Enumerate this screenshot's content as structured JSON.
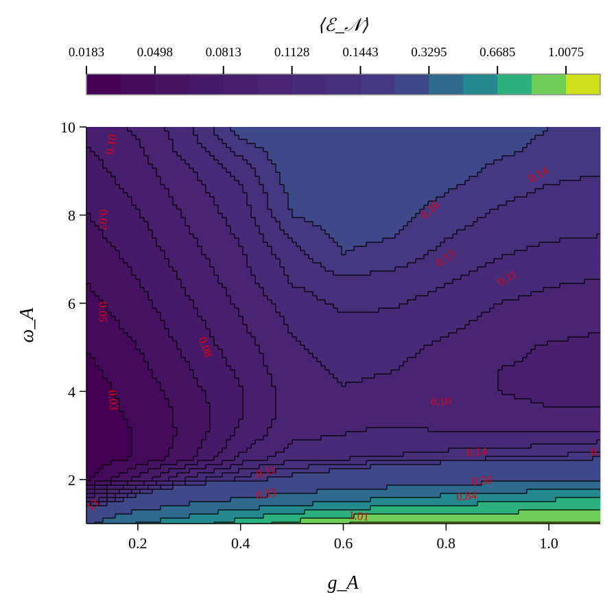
{
  "chart_data": {
    "type": "contourf",
    "xlabel": "g_A",
    "ylabel": "ω_A",
    "xlim": [
      0.1,
      1.1
    ],
    "ylim": [
      1,
      10
    ],
    "xticks": [
      0.2,
      0.4,
      0.6,
      0.8,
      1.0
    ],
    "xtick_labels": [
      "0.2",
      "0.4",
      "0.6",
      "0.8",
      "1.0"
    ],
    "yticks": [
      2,
      4,
      6,
      8,
      10
    ],
    "ytick_labels": [
      "2",
      "4",
      "6",
      "8",
      "10"
    ],
    "colorbar": {
      "label": "⟨ℰ_𝒩⟩",
      "position": "top",
      "levels": [
        0.0183,
        0.0341,
        0.0498,
        0.0656,
        0.0813,
        0.097,
        0.1128,
        0.1285,
        0.1443,
        0.16,
        0.3295,
        0.499,
        0.6685,
        0.838,
        1.0075,
        1.177
      ],
      "tick_labels": [
        "0.0183",
        "0.0498",
        "0.0813",
        "0.1128",
        "0.1443",
        "0.3295",
        "0.6685",
        "1.0075"
      ],
      "band_colors": [
        "#440154",
        "#450a5c",
        "#461363",
        "#471a69",
        "#471f6e",
        "#482473",
        "#472a78",
        "#46307c",
        "#453781",
        "#3f4889",
        "#30698e",
        "#23898e",
        "#2cb17e",
        "#6ece58",
        "#d0e11c"
      ]
    },
    "x": [
      0.1,
      0.2,
      0.3,
      0.4,
      0.5,
      0.6,
      0.7,
      0.8,
      0.9,
      1.0,
      1.1
    ],
    "y": [
      10,
      9.5,
      9,
      8.5,
      8,
      7.5,
      7,
      6.5,
      6,
      5.5,
      5,
      4.5,
      4,
      3.5,
      3,
      2.5,
      2,
      1.5,
      1
    ],
    "z": [
      [
        0.085,
        0.1,
        0.125,
        0.17,
        0.18,
        0.18,
        0.18,
        0.175,
        0.17,
        0.16,
        0.155
      ],
      [
        0.08,
        0.095,
        0.12,
        0.15,
        0.175,
        0.18,
        0.18,
        0.175,
        0.165,
        0.155,
        0.15
      ],
      [
        0.075,
        0.09,
        0.11,
        0.135,
        0.17,
        0.18,
        0.18,
        0.17,
        0.155,
        0.148,
        0.145
      ],
      [
        0.07,
        0.085,
        0.105,
        0.125,
        0.165,
        0.175,
        0.17,
        0.16,
        0.148,
        0.142,
        0.14
      ],
      [
        0.065,
        0.08,
        0.1,
        0.12,
        0.16,
        0.17,
        0.165,
        0.152,
        0.142,
        0.137,
        0.135
      ],
      [
        0.06,
        0.075,
        0.095,
        0.115,
        0.145,
        0.165,
        0.16,
        0.145,
        0.135,
        0.13,
        0.128
      ],
      [
        0.055,
        0.07,
        0.09,
        0.11,
        0.135,
        0.158,
        0.15,
        0.138,
        0.128,
        0.123,
        0.12
      ],
      [
        0.05,
        0.065,
        0.085,
        0.105,
        0.13,
        0.14,
        0.138,
        0.13,
        0.12,
        0.115,
        0.112
      ],
      [
        0.045,
        0.06,
        0.08,
        0.1,
        0.12,
        0.132,
        0.13,
        0.122,
        0.113,
        0.108,
        0.103
      ],
      [
        0.04,
        0.055,
        0.075,
        0.095,
        0.115,
        0.125,
        0.123,
        0.116,
        0.108,
        0.1,
        0.098
      ],
      [
        0.035,
        0.05,
        0.07,
        0.09,
        0.11,
        0.12,
        0.117,
        0.11,
        0.1,
        0.096,
        0.095
      ],
      [
        0.03,
        0.045,
        0.065,
        0.085,
        0.108,
        0.115,
        0.113,
        0.105,
        0.097,
        0.095,
        0.094
      ],
      [
        0.027,
        0.04,
        0.06,
        0.08,
        0.105,
        0.112,
        0.11,
        0.103,
        0.097,
        0.095,
        0.095
      ],
      [
        0.025,
        0.038,
        0.055,
        0.08,
        0.105,
        0.11,
        0.11,
        0.105,
        0.1,
        0.098,
        0.098
      ],
      [
        0.023,
        0.035,
        0.055,
        0.085,
        0.11,
        0.113,
        0.115,
        0.115,
        0.115,
        0.115,
        0.118
      ],
      [
        0.022,
        0.036,
        0.06,
        0.1,
        0.12,
        0.125,
        0.13,
        0.135,
        0.14,
        0.145,
        0.155
      ],
      [
        0.03,
        0.07,
        0.12,
        0.15,
        0.17,
        0.19,
        0.22,
        0.25,
        0.28,
        0.3,
        0.32
      ],
      [
        0.1,
        0.2,
        0.3,
        0.36,
        0.42,
        0.5,
        0.55,
        0.6,
        0.65,
        0.7,
        0.75
      ],
      [
        0.3,
        0.5,
        0.6,
        0.75,
        0.9,
        1.0,
        1.05,
        1.05,
        1.03,
        1.02,
        1.02
      ]
    ],
    "contour_labels": [
      {
        "text": "0.10",
        "x": 0.15,
        "y": 9.6
      },
      {
        "text": "0.07",
        "x": 0.13,
        "y": 7.9
      },
      {
        "text": "0.05",
        "x": 0.13,
        "y": 5.8
      },
      {
        "text": "0.03",
        "x": 0.15,
        "y": 3.8
      },
      {
        "text": "0.08",
        "x": 0.33,
        "y": 5.0
      },
      {
        "text": "0.16",
        "x": 0.77,
        "y": 8.1
      },
      {
        "text": "0.14",
        "x": 0.98,
        "y": 8.9
      },
      {
        "text": "0.13",
        "x": 0.8,
        "y": 7.0
      },
      {
        "text": "0.11",
        "x": 0.92,
        "y": 6.55
      },
      {
        "text": "0.10",
        "x": 0.79,
        "y": 3.75
      },
      {
        "text": "0.11",
        "x": 0.45,
        "y": 2.15
      },
      {
        "text": "0.14",
        "x": 0.86,
        "y": 2.6
      },
      {
        "text": "0.",
        "x": 1.09,
        "y": 2.6
      },
      {
        "text": "0.33",
        "x": 0.45,
        "y": 1.65
      },
      {
        "text": "0.50",
        "x": 0.87,
        "y": 1.95
      },
      {
        "text": "0.84",
        "x": 0.84,
        "y": 1.6
      },
      {
        "text": "1.01",
        "x": 0.63,
        "y": 1.15
      },
      {
        "text": "13",
        "x": 0.113,
        "y": 1.4
      }
    ]
  }
}
